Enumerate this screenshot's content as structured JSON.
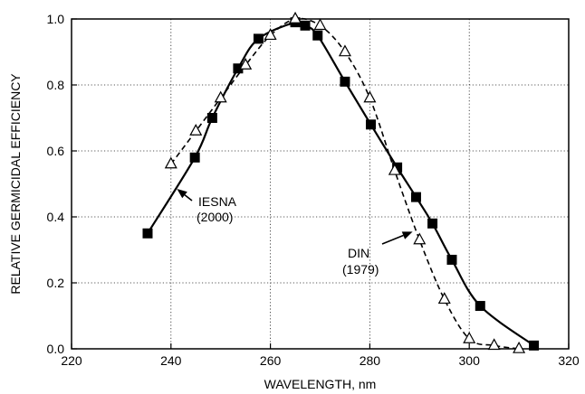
{
  "chart_data": {
    "type": "line",
    "xlabel": "WAVELENGTH, nm",
    "ylabel": "RELATIVE GERMICIDAL EFFICIENCY",
    "xlim": [
      220,
      320
    ],
    "ylim": [
      0.0,
      1.0
    ],
    "x_ticks": [
      "220",
      "240",
      "260",
      "280",
      "300",
      "320"
    ],
    "y_ticks": [
      "0.0",
      "0.2",
      "0.4",
      "0.6",
      "0.8",
      "1.0"
    ],
    "grid": true,
    "series": [
      {
        "name": "IESNA (2000)",
        "marker": "filled-square",
        "line": "solid",
        "color": "#000000",
        "points": [
          [
            235.3,
            0.35
          ],
          [
            244.8,
            0.58
          ],
          [
            248.3,
            0.7
          ],
          [
            253.5,
            0.85
          ],
          [
            257.6,
            0.94
          ],
          [
            265.0,
            0.99
          ],
          [
            267.0,
            0.98
          ],
          [
            269.5,
            0.95
          ],
          [
            275.0,
            0.81
          ],
          [
            280.2,
            0.68
          ],
          [
            285.5,
            0.55
          ],
          [
            289.3,
            0.46
          ],
          [
            292.6,
            0.38
          ],
          [
            296.5,
            0.27
          ],
          [
            302.2,
            0.13
          ],
          [
            313.0,
            0.01
          ]
        ]
      },
      {
        "name": "DIN (1979)",
        "marker": "open-triangle",
        "line": "dashed",
        "color": "#000000",
        "points": [
          [
            240.0,
            0.56
          ],
          [
            245.0,
            0.66
          ],
          [
            250.0,
            0.76
          ],
          [
            255.0,
            0.86
          ],
          [
            260.0,
            0.95
          ],
          [
            265.0,
            1.0
          ],
          [
            270.0,
            0.98
          ],
          [
            275.0,
            0.9
          ],
          [
            280.0,
            0.76
          ],
          [
            285.0,
            0.54
          ],
          [
            290.0,
            0.33
          ],
          [
            295.0,
            0.15
          ],
          [
            300.0,
            0.03
          ],
          [
            305.0,
            0.01
          ],
          [
            310.0,
            0.0
          ]
        ]
      }
    ],
    "annotations": [
      {
        "line1": "IESNA",
        "line2": "(2000)",
        "series": "IESNA (2000)"
      },
      {
        "line1": "DIN",
        "line2": "(1979)",
        "series": "DIN (1979)"
      }
    ]
  }
}
